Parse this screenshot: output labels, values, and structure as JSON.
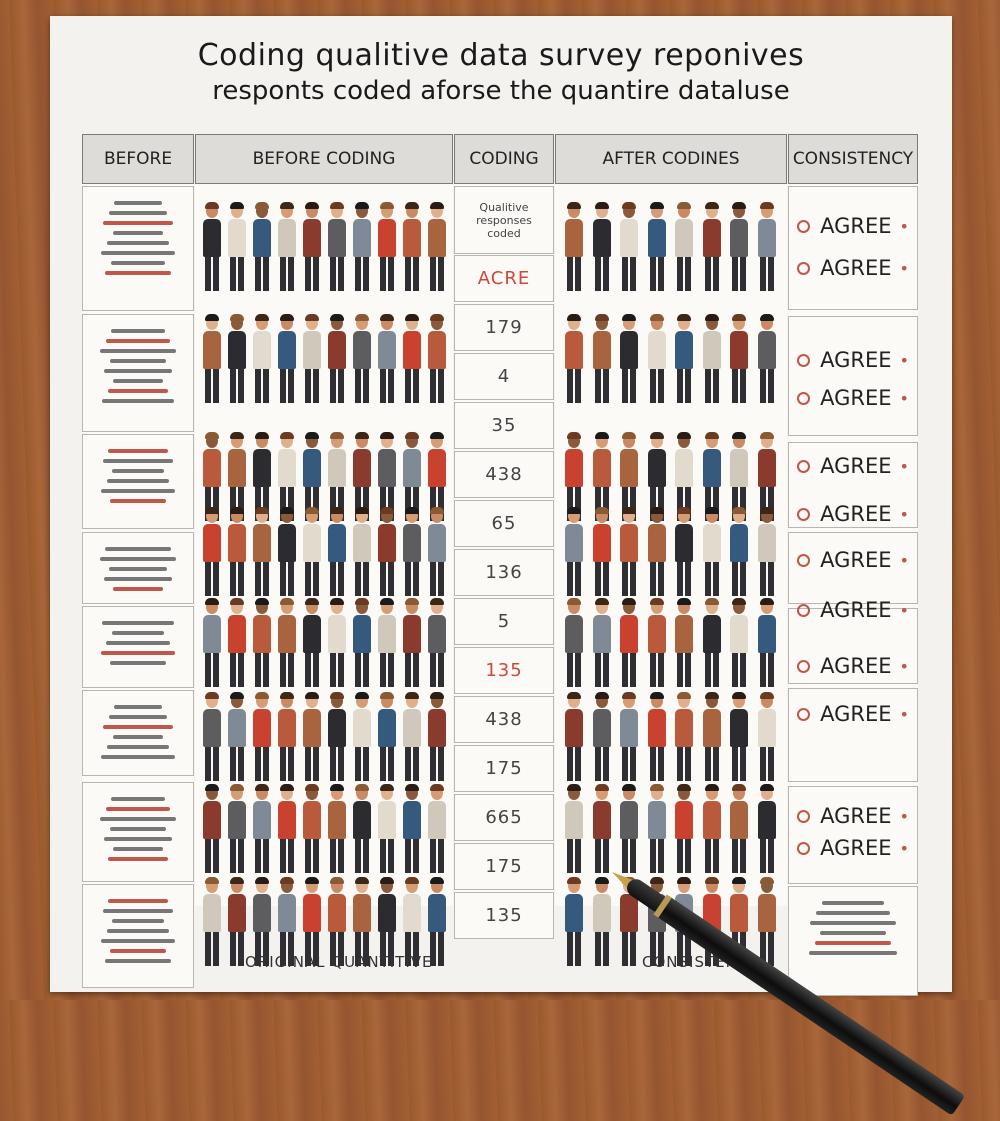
{
  "title": {
    "line1": "Coding qualitive   data survey reponives",
    "line2": "responts coded aforse the quantire dataluse"
  },
  "columns": {
    "before": "BEFORE",
    "before_coding": "BEFORE CODING",
    "coding": "CODING",
    "after_coding": "AFTER CODINES",
    "consistency": "CONSISTENCY"
  },
  "coding_header_note": "Qualitive responses coded",
  "coding_values": [
    "ACRE",
    "179",
    "4",
    "35",
    "438",
    "65",
    "136",
    "5",
    "135",
    "438",
    "175",
    "665",
    "175",
    "135"
  ],
  "coding_red": [
    true,
    false,
    false,
    false,
    false,
    false,
    false,
    false,
    true,
    false,
    false,
    false,
    false,
    false
  ],
  "agree_labels": [
    "AGREE",
    "AGREE",
    "AGREE",
    "AGREE",
    "AGREE",
    "AGREE",
    "AGREE",
    "AGREE",
    "AGREE",
    "AGREE",
    "AGREE",
    "AGREE"
  ],
  "footer": {
    "left": "ORIGINAL QUANTITIVE",
    "right": "CONSISTENCY"
  },
  "colors": {
    "desk": "#a35f33",
    "paper": "#f4f2ee",
    "header_fill": "#dedcd8",
    "accent_red": "#c0574a",
    "number_red": "#d0463a"
  },
  "icons": [
    "person-figure-icon",
    "pen-icon"
  ]
}
